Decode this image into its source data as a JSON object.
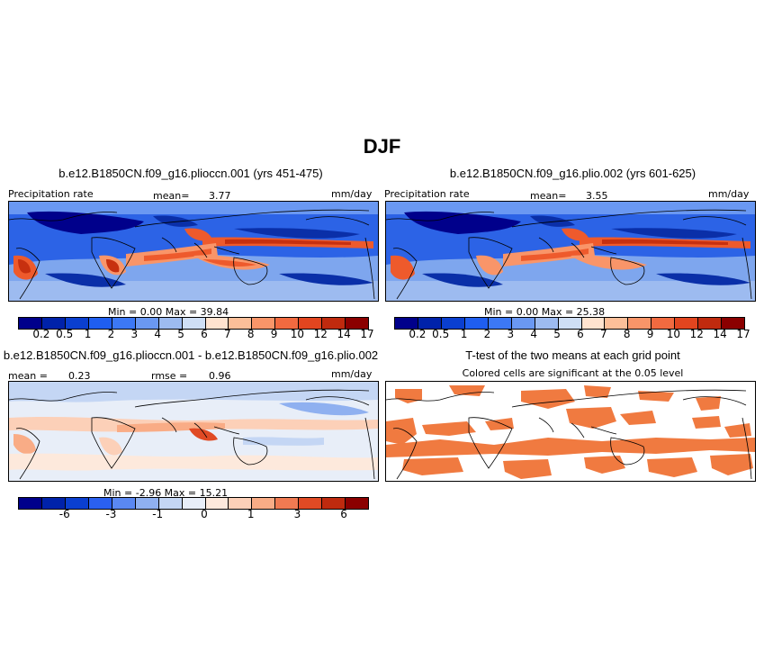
{
  "title": "DJF",
  "panels": [
    {
      "title": "b.e12.B1850CN.f09_g16.plioccn.001 (yrs 451-475)",
      "variable": "Precipitation rate",
      "mean_label": "mean=",
      "mean_value": "3.77",
      "units": "mm/day",
      "minmax": "Min =    0.00  Max =   39.84",
      "colorbar_colors": [
        "#00008b",
        "#0022aa",
        "#0a3fd0",
        "#1f5ef0",
        "#3c78f5",
        "#6a98f2",
        "#9dbbf0",
        "#cfdff5",
        "#ffe3cf",
        "#fcbf99",
        "#f99569",
        "#f26a40",
        "#e2451f",
        "#c02a0e",
        "#8b0000"
      ],
      "colorbar_labels": [
        "0.2",
        "0.5",
        "1",
        "2",
        "3",
        "4",
        "5",
        "6",
        "7",
        "8",
        "9",
        "10",
        "12",
        "14",
        "17"
      ]
    },
    {
      "title": "b.e12.B1850CN.f09_g16.plio.002 (yrs 601-625)",
      "variable": "Precipitation rate",
      "mean_label": "mean=",
      "mean_value": "3.55",
      "units": "mm/day",
      "minmax": "Min =    0.00  Max =   25.38",
      "colorbar_colors": [
        "#00008b",
        "#0022aa",
        "#0a3fd0",
        "#1f5ef0",
        "#3c78f5",
        "#6a98f2",
        "#9dbbf0",
        "#cfdff5",
        "#ffe3cf",
        "#fcbf99",
        "#f99569",
        "#f26a40",
        "#e2451f",
        "#c02a0e",
        "#8b0000"
      ],
      "colorbar_labels": [
        "0.2",
        "0.5",
        "1",
        "2",
        "3",
        "4",
        "5",
        "6",
        "7",
        "8",
        "9",
        "10",
        "12",
        "14",
        "17"
      ]
    },
    {
      "title": "b.e12.B1850CN.f09_g16.plioccn.001 - b.e12.B1850CN.f09_g16.plio.002",
      "mean_label": "mean =",
      "mean_value": "0.23",
      "rmse_label": "rmse =",
      "rmse_value": "0.96",
      "units": "mm/day",
      "minmax": "Min =   -2.96  Max =   15.21",
      "colorbar_colors": [
        "#00008b",
        "#0022aa",
        "#0a3fd0",
        "#2a60f0",
        "#5a88f2",
        "#8fb0f0",
        "#c4d6f4",
        "#e8eef8",
        "#fde9dc",
        "#fcd0b8",
        "#f9ac86",
        "#f07a52",
        "#e04a24",
        "#bf2a0e",
        "#8b0000"
      ],
      "colorbar_labels": [
        "-6",
        "-3",
        "-1",
        "0",
        "1",
        "3",
        "6"
      ]
    },
    {
      "title": "T-test of the two means at each grid point",
      "subtitle": "Colored cells are significant at the 0.05 level",
      "fill_color": "#f07a40"
    }
  ],
  "colors": {
    "deep_blue": "#0a2fa8",
    "mid_blue": "#2c63e6",
    "light_blue": "#7ea6ee",
    "pale_blue": "#c9dbf6",
    "pale_red": "#fbd6bf",
    "red": "#ee5a2c",
    "dark_red": "#c7300f"
  }
}
